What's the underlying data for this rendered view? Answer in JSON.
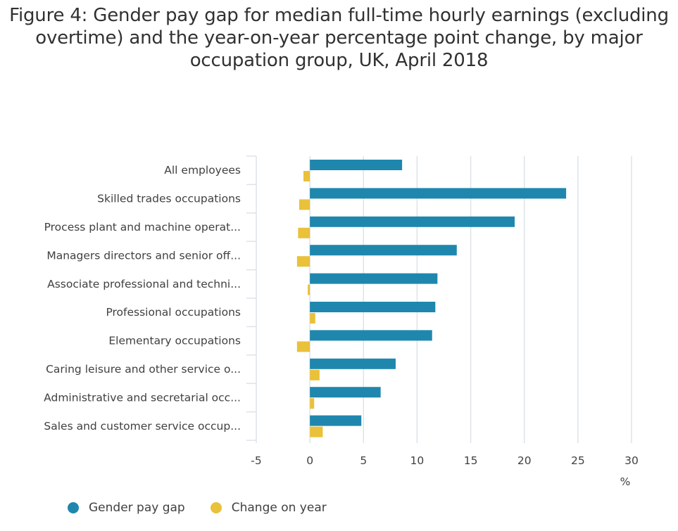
{
  "title": "Figure 4: Gender pay gap for median full-time hourly earnings (excluding overtime) and the year-on-year percentage point change, by major occupation group, UK, April 2018",
  "chart_data": {
    "type": "bar",
    "orientation": "horizontal",
    "categories": [
      "All employees",
      "Skilled trades occupations",
      "Process plant and machine operat...",
      "Managers directors and senior off...",
      "Associate professional and techni...",
      "Professional occupations",
      "Elementary occupations",
      "Caring leisure and other service o...",
      "Administrative and secretarial occ...",
      "Sales and customer service occup..."
    ],
    "series": [
      {
        "name": "Gender pay gap",
        "color": "#1f87ad",
        "values": [
          8.6,
          23.9,
          19.1,
          13.7,
          11.9,
          11.7,
          11.4,
          8.0,
          6.6,
          4.8
        ]
      },
      {
        "name": "Change on year",
        "color": "#e9c13a",
        "values": [
          -0.6,
          -1.0,
          -1.1,
          -1.2,
          -0.2,
          0.5,
          -1.2,
          0.9,
          0.4,
          1.2
        ]
      }
    ],
    "xlim": [
      -5,
      30
    ],
    "xticks": [
      -5,
      0,
      5,
      10,
      15,
      20,
      25,
      30
    ],
    "xtick_labels": [
      "-5",
      "0",
      "5",
      "10",
      "15",
      "20",
      "25",
      "30"
    ],
    "xlabel": "%",
    "grid": true,
    "legend_position": "bottom-left"
  }
}
